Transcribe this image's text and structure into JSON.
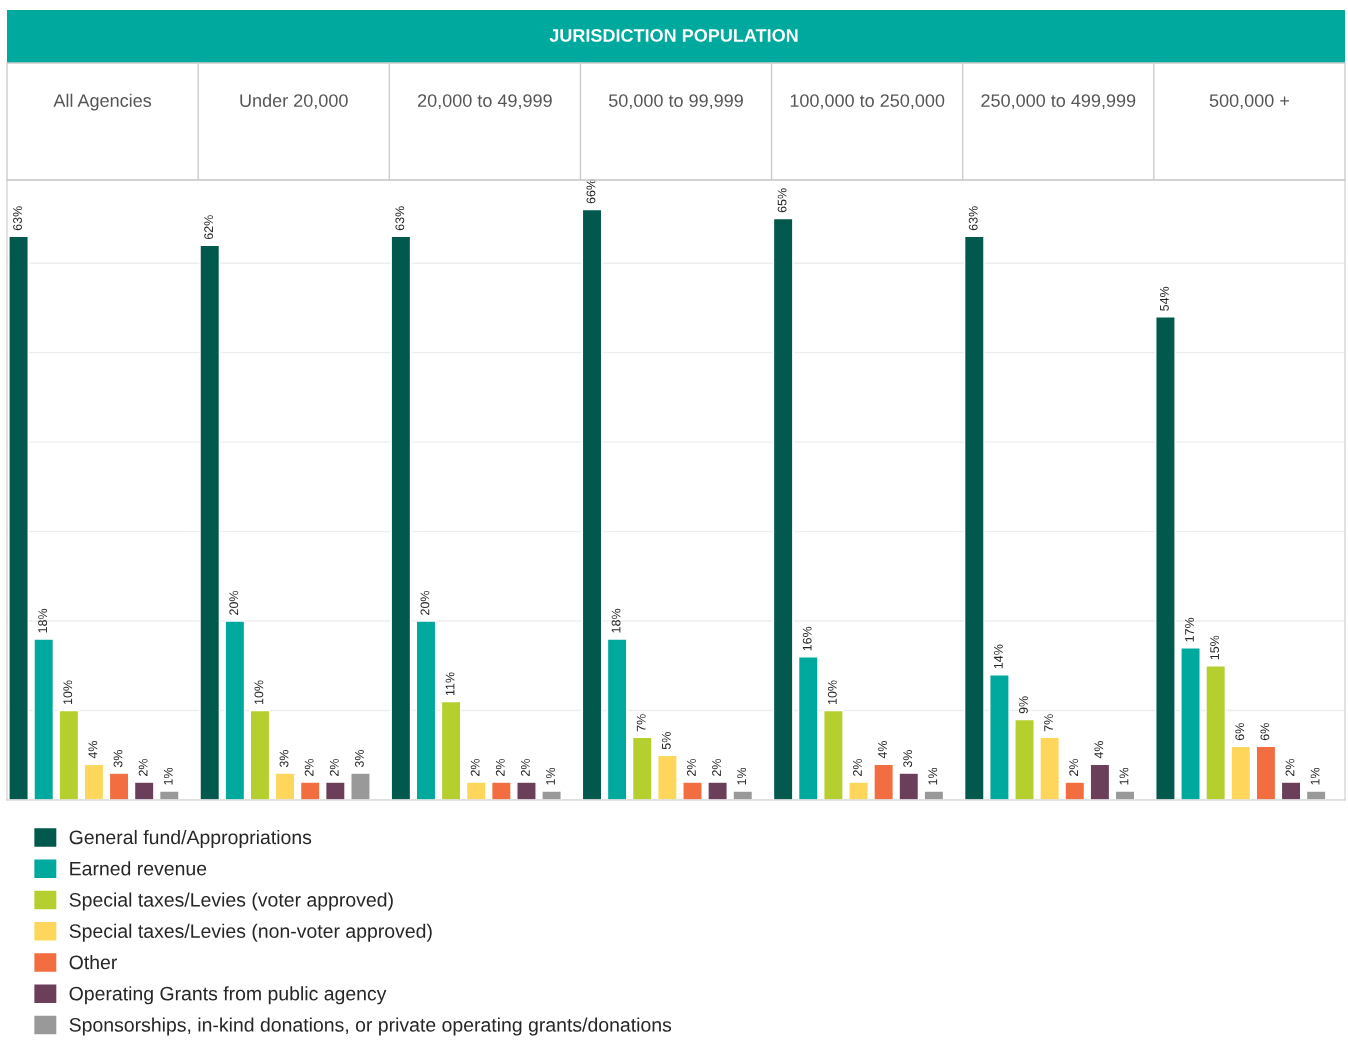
{
  "chart_data": {
    "type": "bar",
    "title": "JURISDICTION POPULATION",
    "categories": [
      "All Agencies",
      "Under 20,000",
      "20,000 to 49,999",
      "50,000 to 99,999",
      "100,000 to 250,000",
      "250,000 to 499,999",
      "500,000 +"
    ],
    "series": [
      {
        "name": "General fund/Appropriations",
        "color": "#00594c",
        "values": [
          63,
          62,
          63,
          66,
          65,
          63,
          54
        ],
        "value_labels": [
          "63%",
          "62%",
          "63%",
          "66%",
          "65%",
          "63%",
          "54%"
        ]
      },
      {
        "name": "Earned revenue",
        "color": "#00a99d",
        "values": [
          18,
          20,
          20,
          18,
          16,
          14,
          17
        ],
        "value_labels": [
          "18%",
          "20%",
          "20%",
          "18%",
          "16%",
          "14%",
          "17%"
        ]
      },
      {
        "name": "Special taxes/Levies (voter approved)",
        "color": "#b5cf2f",
        "values": [
          10,
          10,
          11,
          7,
          10,
          9,
          15
        ],
        "value_labels": [
          "10%",
          "10%",
          "11%",
          "7%",
          "10%",
          "9%",
          "15%"
        ]
      },
      {
        "name": "Special taxes/Levies (non-voter approved)",
        "color": "#fdd65b",
        "values": [
          4,
          3,
          2,
          5,
          2,
          7,
          6
        ],
        "value_labels": [
          "4%",
          "3%",
          "2%",
          "5%",
          "2%",
          "7%",
          "6%"
        ]
      },
      {
        "name": "Other",
        "color": "#f26d3f",
        "values": [
          3,
          2,
          2,
          2,
          4,
          2,
          6
        ],
        "value_labels": [
          "3%",
          "2%",
          "2%",
          "2%",
          "4%",
          "2%",
          "6%"
        ]
      },
      {
        "name": "Operating Grants from public agency",
        "color": "#6b3f5a",
        "values": [
          2,
          2,
          2,
          2,
          3,
          4,
          2
        ],
        "value_labels": [
          "2%",
          "2%",
          "2%",
          "2%",
          "3%",
          "4%",
          "2%"
        ]
      },
      {
        "name": "Sponsorships, in-kind donations, or private operating grants/donations",
        "color": "#999999",
        "values": [
          1,
          3,
          1,
          1,
          1,
          1,
          1
        ],
        "value_labels": [
          "1%",
          "3%",
          "1%",
          "1%",
          "1%",
          "1%",
          "1%"
        ]
      }
    ],
    "tick_labels": "x",
    "grid": "y",
    "legend": "bottom left"
  }
}
